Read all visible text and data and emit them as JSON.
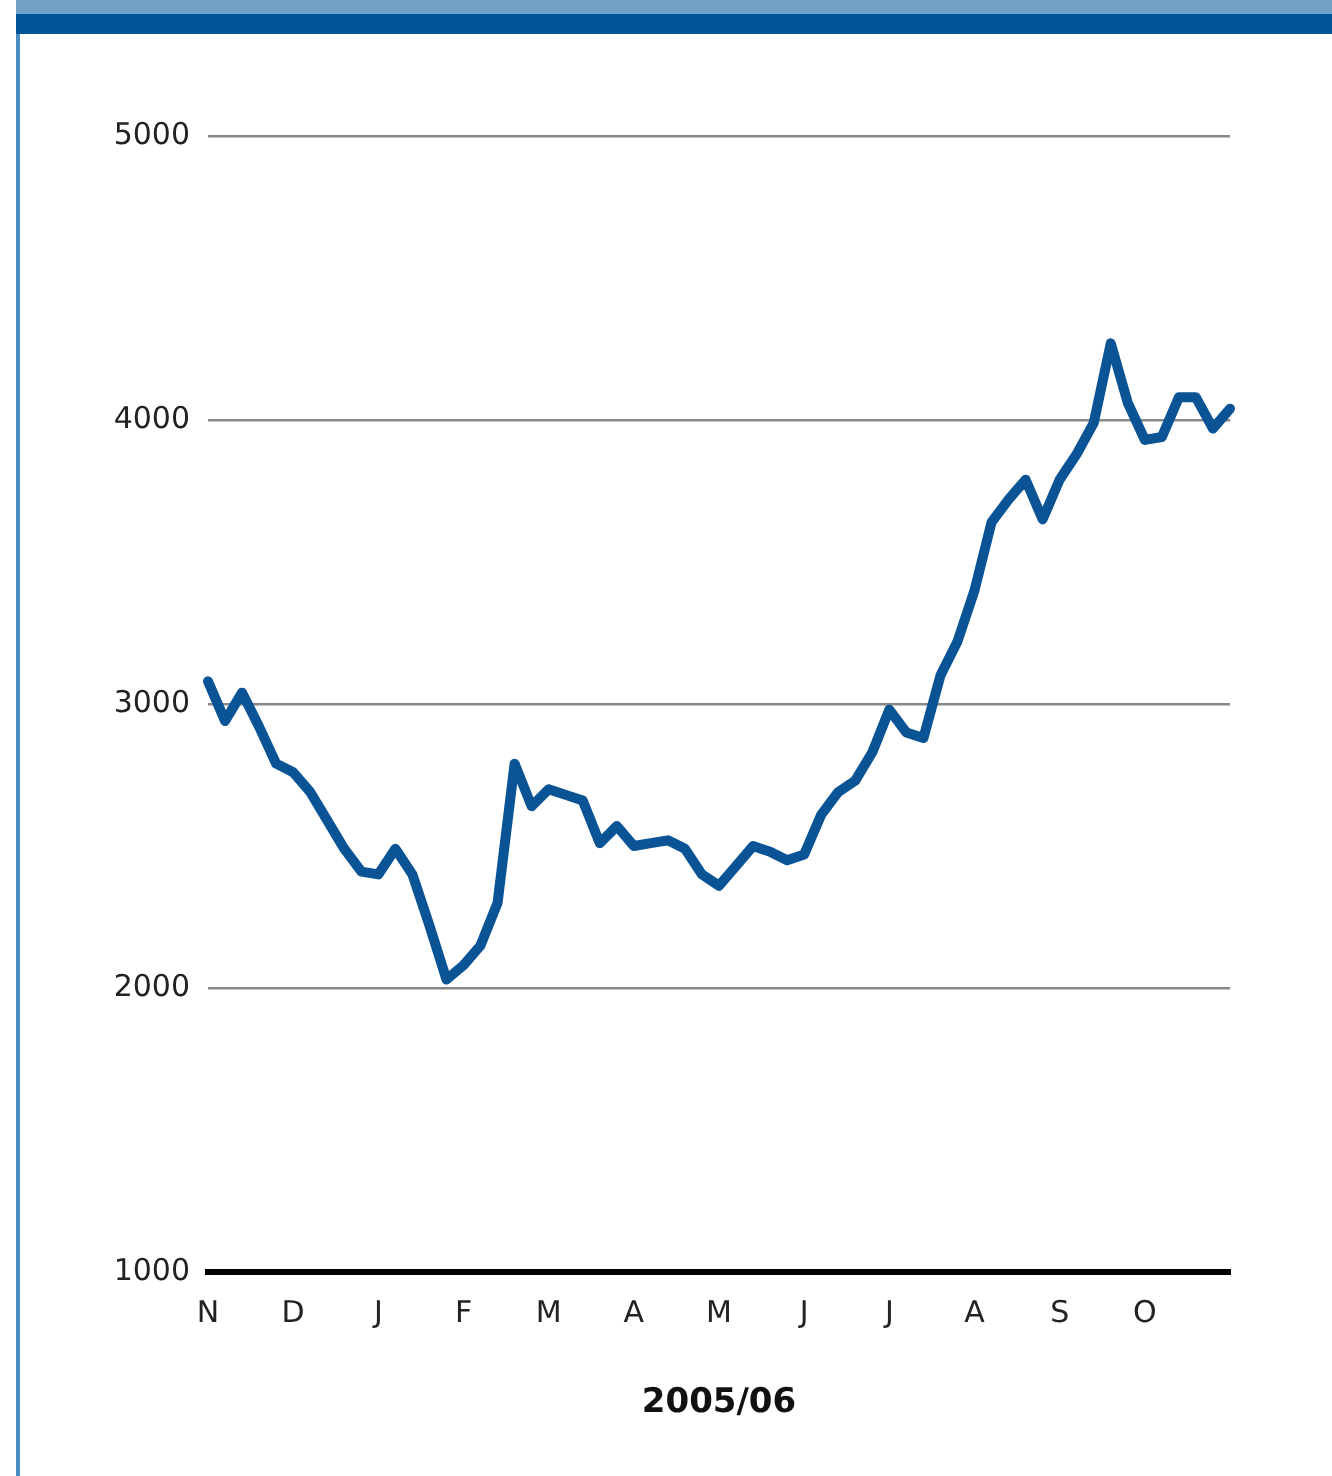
{
  "chart_data": {
    "type": "line",
    "xlabel": "2005/06",
    "categories": [
      "N",
      null,
      null,
      null,
      null,
      "D",
      null,
      null,
      null,
      null,
      "J",
      null,
      null,
      null,
      null,
      "F",
      null,
      null,
      null,
      null,
      "M",
      null,
      null,
      null,
      null,
      "A",
      null,
      null,
      null,
      null,
      "M",
      null,
      null,
      null,
      null,
      "J",
      null,
      null,
      null,
      null,
      "J",
      null,
      null,
      null,
      null,
      "A",
      null,
      null,
      null,
      null,
      "S",
      null,
      null,
      null,
      null,
      "O",
      null,
      null,
      null,
      null,
      null
    ],
    "series": [
      {
        "color": "#0a5496",
        "values": [
          3080,
          2940,
          3040,
          2920,
          2790,
          2760,
          2690,
          2590,
          2490,
          2410,
          2400,
          2490,
          2400,
          2220,
          2030,
          2080,
          2150,
          2300,
          2790,
          2640,
          2700,
          2680,
          2660,
          2510,
          2570,
          2500,
          2510,
          2520,
          2490,
          2400,
          2360,
          2430,
          2500,
          2480,
          2450,
          2470,
          2610,
          2690,
          2730,
          2830,
          2980,
          2900,
          2880,
          3100,
          3220,
          3400,
          3640,
          3720,
          3790,
          3650,
          3790,
          3880,
          3990,
          4270,
          4060,
          3930,
          3940,
          4080,
          4080,
          3970,
          4040
        ]
      }
    ],
    "ylim": [
      1000,
      5000
    ],
    "yticks": [
      1000,
      2000,
      3000,
      4000,
      5000
    ],
    "grid": "y",
    "legend": false,
    "marker": "none",
    "line_style": "solid"
  }
}
